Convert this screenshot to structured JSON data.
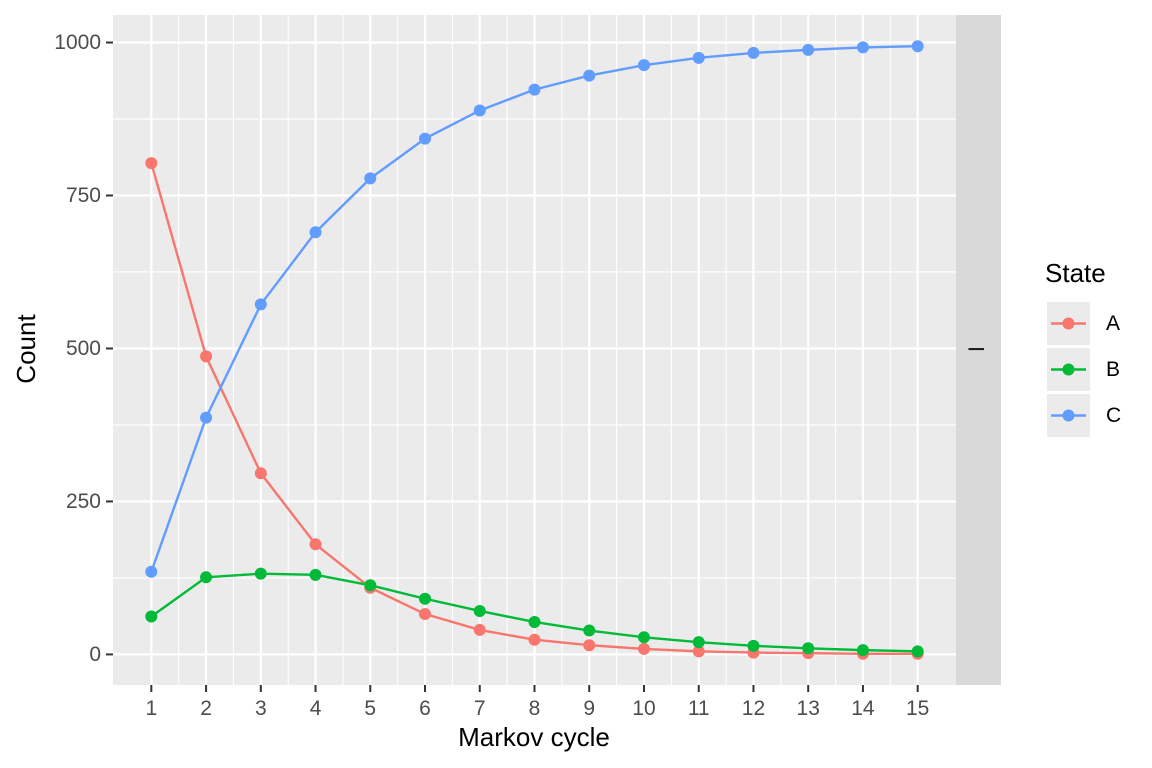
{
  "chart_data": {
    "type": "line",
    "x": [
      1,
      2,
      3,
      4,
      5,
      6,
      7,
      8,
      9,
      10,
      11,
      12,
      13,
      14,
      15
    ],
    "xlabel": "Markov cycle",
    "ylabel": "Count",
    "xlim": [
      0.3,
      15.7
    ],
    "ylim": [
      -50,
      1045
    ],
    "yticks": [
      0,
      250,
      500,
      750,
      1000
    ],
    "xticks": [
      1,
      2,
      3,
      4,
      5,
      6,
      7,
      8,
      9,
      10,
      11,
      12,
      13,
      14,
      15
    ],
    "grid": true,
    "facet_strip_label": "I",
    "legend": {
      "title": "State",
      "position": "right"
    },
    "series": [
      {
        "name": "A",
        "color": "#F8766D",
        "values": [
          803,
          487,
          296,
          180,
          109,
          66,
          40,
          24,
          15,
          9,
          5,
          3,
          2,
          1,
          1
        ]
      },
      {
        "name": "B",
        "color": "#00BA38",
        "values": [
          62,
          126,
          132,
          130,
          113,
          91,
          71,
          53,
          39,
          28,
          20,
          14,
          10,
          7,
          5
        ]
      },
      {
        "name": "C",
        "color": "#619CFF",
        "values": [
          135,
          387,
          572,
          690,
          778,
          843,
          889,
          923,
          946,
          963,
          975,
          983,
          988,
          992,
          994
        ]
      }
    ]
  }
}
